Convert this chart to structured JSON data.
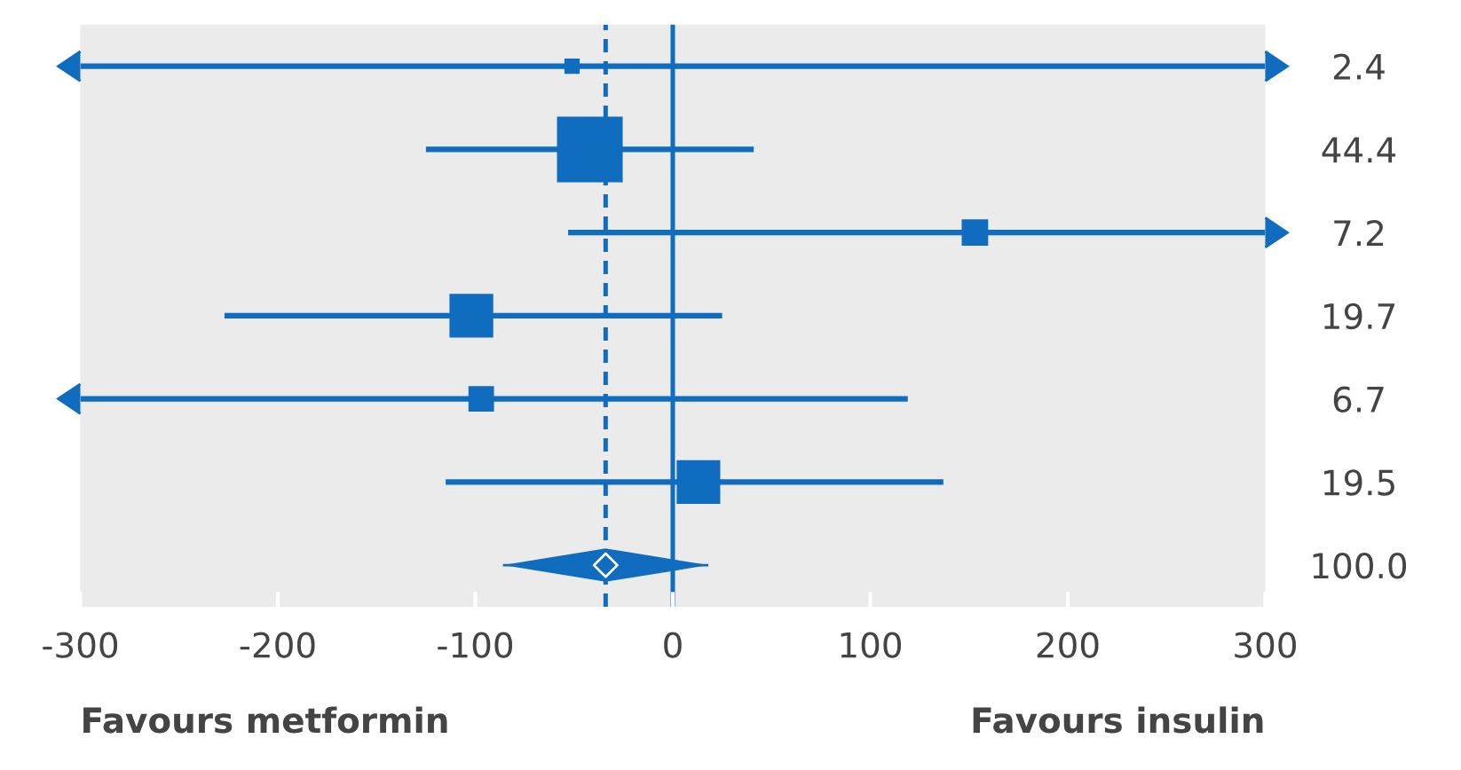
{
  "chart_data": {
    "type": "scatter",
    "orientation": "horizontal",
    "categories": [
      "2.4",
      "44.4",
      "7.2",
      "19.7",
      "6.7",
      "19.5",
      "100.0"
    ],
    "series": [
      {
        "type": "bubble",
        "color": "#0f6cbf",
        "marker": "square",
        "values": [
          -51,
          -42,
          153,
          -102,
          -97,
          13,
          null
        ],
        "sizes": [
          0.054,
          1,
          0.162,
          0.444,
          0.151,
          0.439,
          null
        ],
        "errors": [
          [
            -300,
            300
          ],
          [
            -125,
            41
          ],
          [
            -53,
            300
          ],
          [
            -227,
            25
          ],
          [
            -300,
            119
          ],
          [
            -115,
            137
          ],
          null
        ]
      },
      {
        "color": "#0f6cbf",
        "marker": "diamond",
        "values": [
          null,
          null,
          null,
          null,
          null,
          null,
          -34
        ],
        "errors": [
          null,
          null,
          null,
          null,
          null,
          null,
          [
            -86,
            18
          ]
        ]
      }
    ],
    "xlim": [
      -300,
      300
    ],
    "xticks": [
      -300,
      -200,
      -100,
      0,
      100,
      200,
      300
    ],
    "grid": false,
    "legend": false,
    "ref_lines": [
      {
        "axis": "x",
        "value": 0,
        "color": "#0f6cbf",
        "line_style": "solid"
      },
      {
        "axis": "x",
        "value": -34,
        "color": "#0f6cbf",
        "line_style": "dashed"
      }
    ],
    "annotations": [
      "Favours metformin",
      "Favours insulin"
    ]
  }
}
